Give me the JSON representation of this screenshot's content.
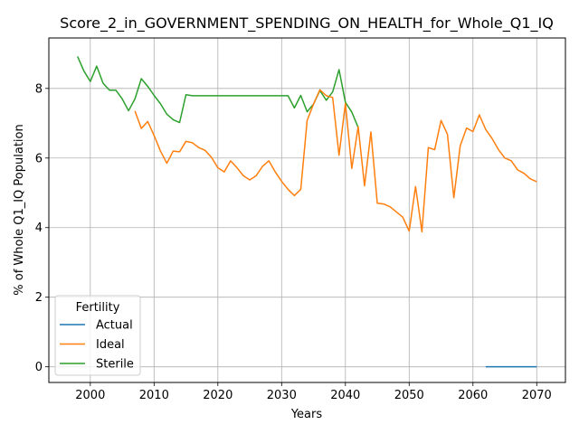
{
  "chart_data": {
    "type": "line",
    "title": "Score_2_in_GOVERNMENT_SPENDING_ON_HEALTH_for_Whole_Q1_IQ",
    "xlabel": "Years",
    "ylabel": "% of Whole Q1_IQ Population",
    "xlim": [
      1993.5,
      2074.5
    ],
    "ylim": [
      -0.45,
      9.45
    ],
    "xticks": [
      2000,
      2010,
      2020,
      2030,
      2040,
      2050,
      2060,
      2070
    ],
    "yticks": [
      0,
      2,
      4,
      6,
      8
    ],
    "grid": true,
    "legend": {
      "title": "Fertility",
      "position": "lower-left"
    },
    "series": [
      {
        "name": "Actual",
        "color": "#1f77b4",
        "x": [
          2062,
          2063,
          2064,
          2065,
          2066,
          2067,
          2068,
          2069,
          2070
        ],
        "y": [
          0,
          0,
          0,
          0,
          0,
          0,
          0,
          0,
          0
        ]
      },
      {
        "name": "Ideal",
        "color": "#ff7f0e",
        "x": [
          2007,
          2008,
          2009,
          2010,
          2011,
          2012,
          2013,
          2014,
          2015,
          2016,
          2017,
          2018,
          2019,
          2020,
          2021,
          2022,
          2023,
          2024,
          2025,
          2026,
          2027,
          2028,
          2029,
          2030,
          2031,
          2032,
          2033,
          2034,
          2035,
          2036,
          2037,
          2038,
          2039,
          2040,
          2041,
          2042,
          2043,
          2044,
          2045,
          2046,
          2047,
          2048,
          2049,
          2050,
          2051,
          2052,
          2053,
          2054,
          2055,
          2056,
          2057,
          2058,
          2059,
          2060,
          2061,
          2062,
          2063,
          2064,
          2065,
          2066,
          2067,
          2068,
          2069,
          2070
        ],
        "y": [
          7.35,
          6.85,
          7.05,
          6.65,
          6.2,
          5.85,
          6.2,
          6.18,
          6.48,
          6.44,
          6.3,
          6.22,
          6.02,
          5.72,
          5.6,
          5.92,
          5.72,
          5.49,
          5.37,
          5.49,
          5.76,
          5.92,
          5.6,
          5.33,
          5.1,
          4.92,
          5.1,
          7.08,
          7.55,
          7.96,
          7.79,
          7.74,
          6.08,
          7.57,
          5.7,
          6.9,
          5.2,
          6.75,
          4.7,
          4.68,
          4.6,
          4.45,
          4.3,
          3.9,
          5.18,
          3.88,
          6.3,
          6.24,
          7.08,
          6.68,
          4.86,
          6.35,
          6.86,
          6.76,
          7.24,
          6.82,
          6.56,
          6.24,
          6.0,
          5.92,
          5.66,
          5.56,
          5.4,
          5.32
        ]
      },
      {
        "name": "Sterile",
        "color": "#2ca02c",
        "x": [
          1998,
          1999,
          2000,
          2001,
          2002,
          2003,
          2004,
          2005,
          2006,
          2007,
          2008,
          2009,
          2010,
          2011,
          2012,
          2013,
          2014,
          2015,
          2016,
          2017,
          2018,
          2019,
          2020,
          2021,
          2022,
          2023,
          2024,
          2025,
          2026,
          2027,
          2028,
          2029,
          2030,
          2031,
          2032,
          2033,
          2034,
          2035,
          2036,
          2037,
          2038,
          2039,
          2040,
          2041,
          2042
        ],
        "y": [
          8.92,
          8.5,
          8.2,
          8.64,
          8.15,
          7.95,
          7.95,
          7.7,
          7.36,
          7.7,
          8.28,
          8.06,
          7.8,
          7.56,
          7.26,
          7.1,
          7.02,
          7.82,
          7.79,
          7.79,
          7.79,
          7.79,
          7.79,
          7.79,
          7.79,
          7.79,
          7.79,
          7.79,
          7.79,
          7.79,
          7.79,
          7.79,
          7.79,
          7.79,
          7.44,
          7.8,
          7.33,
          7.55,
          7.94,
          7.66,
          7.9,
          8.54,
          7.6,
          7.32,
          6.88
        ]
      }
    ]
  }
}
